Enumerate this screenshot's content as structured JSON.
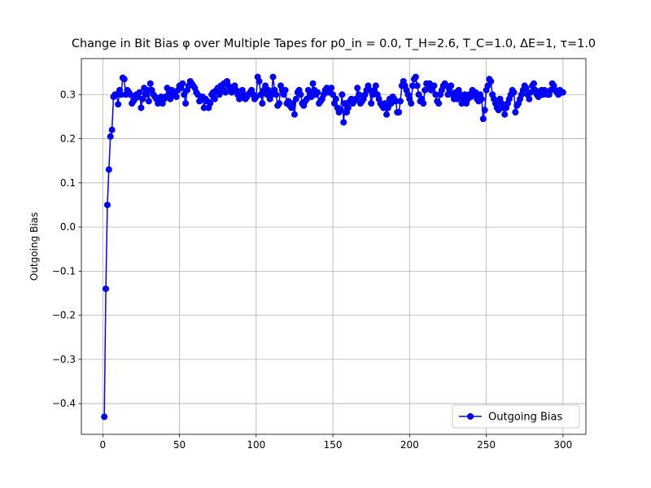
{
  "chart_data": {
    "type": "line",
    "title": "Change in Bit Bias φ over Multiple Tapes for p0_in = 0.0, T_H=2.6, T_C=1.0, ΔE=1, τ=1.0",
    "y_label": "Outgoing Bias",
    "x": [
      1,
      2,
      3,
      4,
      5,
      6,
      7,
      8,
      9,
      10,
      11,
      12,
      13,
      14,
      15,
      16,
      17,
      18,
      19,
      20,
      21,
      22,
      23,
      24,
      25,
      26,
      27,
      28,
      29,
      30,
      31,
      32,
      33,
      34,
      35,
      36,
      37,
      38,
      39,
      40,
      41,
      42,
      43,
      44,
      45,
      46,
      47,
      48,
      49,
      50,
      51,
      52,
      53,
      54,
      55,
      56,
      57,
      58,
      59,
      60,
      61,
      62,
      63,
      64,
      65,
      66,
      67,
      68,
      69,
      70,
      71,
      72,
      73,
      74,
      75,
      76,
      77,
      78,
      79,
      80,
      81,
      82,
      83,
      84,
      85,
      86,
      87,
      88,
      89,
      90,
      91,
      92,
      93,
      94,
      95,
      96,
      97,
      98,
      99,
      100,
      101,
      102,
      103,
      104,
      105,
      106,
      107,
      108,
      109,
      110,
      111,
      112,
      113,
      114,
      115,
      116,
      117,
      118,
      119,
      120,
      121,
      122,
      123,
      124,
      125,
      126,
      127,
      128,
      129,
      130,
      131,
      132,
      133,
      134,
      135,
      136,
      137,
      138,
      139,
      140,
      141,
      142,
      143,
      144,
      145,
      146,
      147,
      148,
      149,
      150,
      151,
      152,
      153,
      154,
      155,
      156,
      157,
      158,
      159,
      160,
      161,
      162,
      163,
      164,
      165,
      166,
      167,
      168,
      169,
      170,
      171,
      172,
      173,
      174,
      175,
      176,
      177,
      178,
      179,
      180,
      181,
      182,
      183,
      184,
      185,
      186,
      187,
      188,
      189,
      190,
      191,
      192,
      193,
      194,
      195,
      196,
      197,
      198,
      199,
      200,
      201,
      202,
      203,
      204,
      205,
      206,
      207,
      208,
      209,
      210,
      211,
      212,
      213,
      214,
      215,
      216,
      217,
      218,
      219,
      220,
      221,
      222,
      223,
      224,
      225,
      226,
      227,
      228,
      229,
      230,
      231,
      232,
      233,
      234,
      235,
      236,
      237,
      238,
      239,
      240,
      241,
      242,
      243,
      244,
      245,
      246,
      247,
      248,
      249,
      250,
      251,
      252,
      253,
      254,
      255,
      256,
      257,
      258,
      259,
      260,
      261,
      262,
      263,
      264,
      265,
      266,
      267,
      268,
      269,
      270,
      271,
      272,
      273,
      274,
      275,
      276,
      277,
      278,
      279,
      280,
      281,
      282,
      283,
      284,
      285,
      286,
      287,
      288,
      289,
      290,
      291,
      292,
      293,
      294,
      295,
      296,
      297,
      298,
      299,
      300
    ],
    "series": [
      {
        "name": "Outgoing Bias",
        "color": "#0000ff",
        "values": [
          -0.43,
          -0.14,
          0.05,
          0.13,
          0.205,
          0.22,
          0.295,
          0.3,
          0.3,
          0.278,
          0.31,
          0.3,
          0.338,
          0.335,
          0.3,
          0.31,
          0.305,
          0.3,
          0.28,
          0.285,
          0.29,
          0.3,
          0.295,
          0.305,
          0.27,
          0.29,
          0.315,
          0.3,
          0.31,
          0.285,
          0.325,
          0.31,
          0.3,
          0.295,
          0.29,
          0.28,
          0.285,
          0.295,
          0.28,
          0.29,
          0.295,
          0.315,
          0.3,
          0.29,
          0.31,
          0.3,
          0.305,
          0.295,
          0.31,
          0.32,
          0.315,
          0.325,
          0.3,
          0.28,
          0.31,
          0.32,
          0.33,
          0.325,
          0.32,
          0.315,
          0.305,
          0.3,
          0.285,
          0.29,
          0.295,
          0.27,
          0.29,
          0.285,
          0.27,
          0.28,
          0.3,
          0.305,
          0.29,
          0.31,
          0.315,
          0.3,
          0.32,
          0.31,
          0.325,
          0.305,
          0.33,
          0.32,
          0.31,
          0.305,
          0.315,
          0.32,
          0.31,
          0.3,
          0.29,
          0.295,
          0.31,
          0.3,
          0.29,
          0.295,
          0.3,
          0.305,
          0.31,
          0.3,
          0.29,
          0.295,
          0.34,
          0.33,
          0.3,
          0.28,
          0.31,
          0.32,
          0.3,
          0.31,
          0.29,
          0.3,
          0.34,
          0.31,
          0.3,
          0.275,
          0.28,
          0.32,
          0.31,
          0.3,
          0.31,
          0.28,
          0.285,
          0.275,
          0.27,
          0.28,
          0.255,
          0.29,
          0.305,
          0.31,
          0.3,
          0.28,
          0.275,
          0.285,
          0.29,
          0.31,
          0.3,
          0.295,
          0.325,
          0.31,
          0.3,
          0.305,
          0.28,
          0.285,
          0.29,
          0.3,
          0.31,
          0.315,
          0.305,
          0.31,
          0.315,
          0.3,
          0.28,
          0.29,
          0.27,
          0.26,
          0.265,
          0.3,
          0.237,
          0.28,
          0.26,
          0.27,
          0.285,
          0.29,
          0.28,
          0.285,
          0.29,
          0.315,
          0.3,
          0.28,
          0.285,
          0.29,
          0.3,
          0.31,
          0.32,
          0.31,
          0.28,
          0.3,
          0.31,
          0.32,
          0.3,
          0.29,
          0.28,
          0.275,
          0.27,
          0.28,
          0.255,
          0.27,
          0.29,
          0.28,
          0.295,
          0.29,
          0.285,
          0.26,
          0.26,
          0.285,
          0.32,
          0.33,
          0.32,
          0.31,
          0.3,
          0.29,
          0.28,
          0.32,
          0.335,
          0.34,
          0.32,
          0.3,
          0.285,
          0.29,
          0.28,
          0.31,
          0.325,
          0.32,
          0.325,
          0.31,
          0.32,
          0.32,
          0.3,
          0.285,
          0.28,
          0.3,
          0.31,
          0.32,
          0.325,
          0.32,
          0.3,
          0.31,
          0.32,
          0.3,
          0.29,
          0.305,
          0.29,
          0.31,
          0.3,
          0.28,
          0.29,
          0.3,
          0.28,
          0.29,
          0.3,
          0.295,
          0.31,
          0.3,
          0.305,
          0.29,
          0.285,
          0.3,
          0.29,
          0.245,
          0.265,
          0.31,
          0.32,
          0.335,
          0.33,
          0.3,
          0.29,
          0.28,
          0.27,
          0.265,
          0.29,
          0.28,
          0.27,
          0.255,
          0.27,
          0.28,
          0.29,
          0.3,
          0.31,
          0.305,
          0.26,
          0.275,
          0.28,
          0.29,
          0.3,
          0.31,
          0.32,
          0.315,
          0.3,
          0.29,
          0.305,
          0.32,
          0.325,
          0.31,
          0.3,
          0.295,
          0.305,
          0.31,
          0.3,
          0.31,
          0.305,
          0.3,
          0.3,
          0.31,
          0.325,
          0.32,
          0.31,
          0.305,
          0.3,
          0.31,
          0.305,
          0.305
        ]
      }
    ],
    "xlim": [
      -13.95,
      314.95
    ],
    "ylim": [
      -0.4697,
      0.3816
    ],
    "xticks": [
      0,
      50,
      100,
      150,
      200,
      250,
      300
    ],
    "yticks": [
      {
        "value": -0.4,
        "label": "−0.4"
      },
      {
        "value": -0.3,
        "label": "−0.3"
      },
      {
        "value": -0.2,
        "label": "−0.2"
      },
      {
        "value": -0.1,
        "label": "−0.1"
      },
      {
        "value": 0,
        "label": "0.0"
      },
      {
        "value": 0.1,
        "label": "0.1"
      },
      {
        "value": 0.2,
        "label": "0.2"
      },
      {
        "value": 0.3,
        "label": "0.3"
      }
    ],
    "grid": true,
    "legend": "lower right"
  }
}
